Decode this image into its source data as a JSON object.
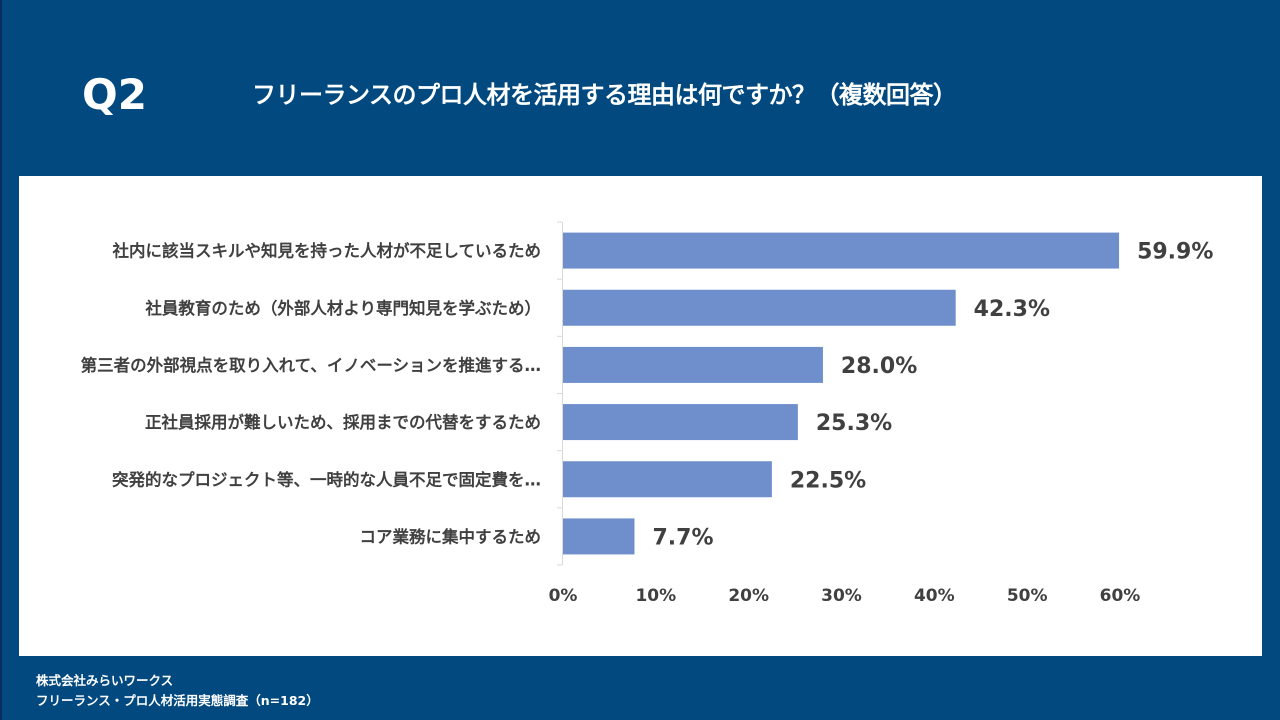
{
  "header": {
    "question_number": "Q2",
    "title": "フリーランスのプロ人材を活用する理由は何ですか？（複数回答）"
  },
  "colors": {
    "background": "#02497f",
    "bar": "#6e8fcb",
    "text": "#404040"
  },
  "chart_data": {
    "type": "bar",
    "orientation": "horizontal",
    "title": "フリーランスのプロ人材を活用する理由は何ですか？（複数回答）",
    "categories": [
      "社内に該当スキルや知見を持った人材が不足しているため",
      "社員教育のため（外部人材より専門知見を学ぶため）",
      "第三者の外部視点を取り入れて、イノベーションを推進する…",
      "正社員採用が難しいため、採用までの代替をするため",
      "突発的なプロジェクト等、一時的な人員不足で固定費を…",
      "コア業務に集中するため"
    ],
    "values": [
      59.9,
      42.3,
      28.0,
      25.3,
      22.5,
      7.7
    ],
    "value_labels": [
      "59.9%",
      "42.3%",
      "28.0%",
      "25.3%",
      "22.5%",
      "7.7%"
    ],
    "xlim": [
      0,
      60
    ],
    "x_ticks": [
      0,
      10,
      20,
      30,
      40,
      50,
      60
    ],
    "x_tick_labels": [
      "0%",
      "10%",
      "20%",
      "30%",
      "40%",
      "50%",
      "60%"
    ],
    "xlabel": "",
    "ylabel": "",
    "grid": false,
    "legend": "none"
  },
  "footer": {
    "company": "株式会社みらいワークス",
    "survey": "フリーランス・プロ人材活用実態調査（n=182）"
  }
}
